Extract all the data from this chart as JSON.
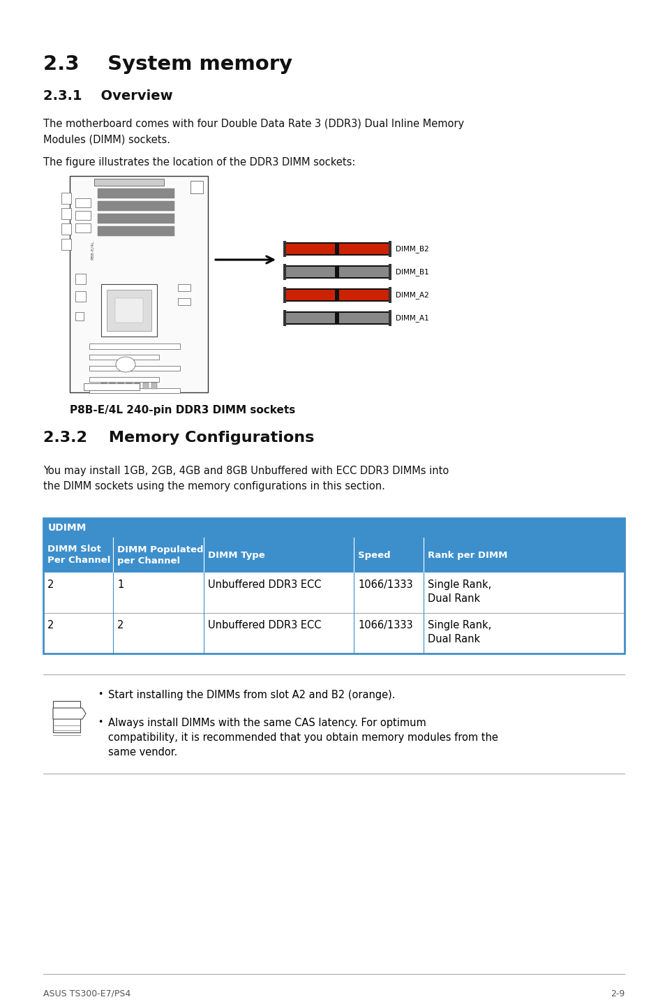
{
  "title_section": "2.3    System memory",
  "subtitle_1": "2.3.1    Overview",
  "body_text_1": "The motherboard comes with four Double Data Rate 3 (DDR3) Dual Inline Memory\nModules (DIMM) sockets.",
  "body_text_2": "The figure illustrates the location of the DDR3 DIMM sockets:",
  "figure_caption": "P8B-E/4L 240-pin DDR3 DIMM sockets",
  "subtitle_2": "2.3.2    Memory Configurations",
  "body_text_3": "You may install 1GB, 2GB, 4GB and 8GB Unbuffered with ECC DDR3 DIMMs into\nthe DIMM sockets using the memory configurations in this section.",
  "table_header_main": "UDIMM",
  "table_headers": [
    "DIMM Slot\nPer Channel",
    "DIMM Populated\nper Channel",
    "DIMM Type",
    "Speed",
    "Rank per DIMM"
  ],
  "table_rows": [
    [
      "2",
      "1",
      "Unbuffered DDR3 ECC",
      "1066/1333",
      "Single Rank,\nDual Rank"
    ],
    [
      "2",
      "2",
      "Unbuffered DDR3 ECC",
      "1066/1333",
      "Single Rank,\nDual Rank"
    ]
  ],
  "note_text_1": "Start installing the DIMMs from slot A2 and B2 (orange).",
  "note_text_2": "Always install DIMMs with the same CAS latency. For optimum\ncompatibility, it is recommended that you obtain memory modules from the\nsame vendor.",
  "footer_left": "ASUS TS300-E7/PS4",
  "footer_right": "2-9",
  "table_header_color": "#3d8fcc",
  "table_border_color": "#3d8fcc",
  "background_color": "#ffffff",
  "text_color": "#111111",
  "dimm_labels": [
    "DIMM_B2",
    "DIMM_B1",
    "DIMM_A2",
    "DIMM_A1"
  ],
  "dimm_orange": [
    true,
    false,
    true,
    false
  ]
}
